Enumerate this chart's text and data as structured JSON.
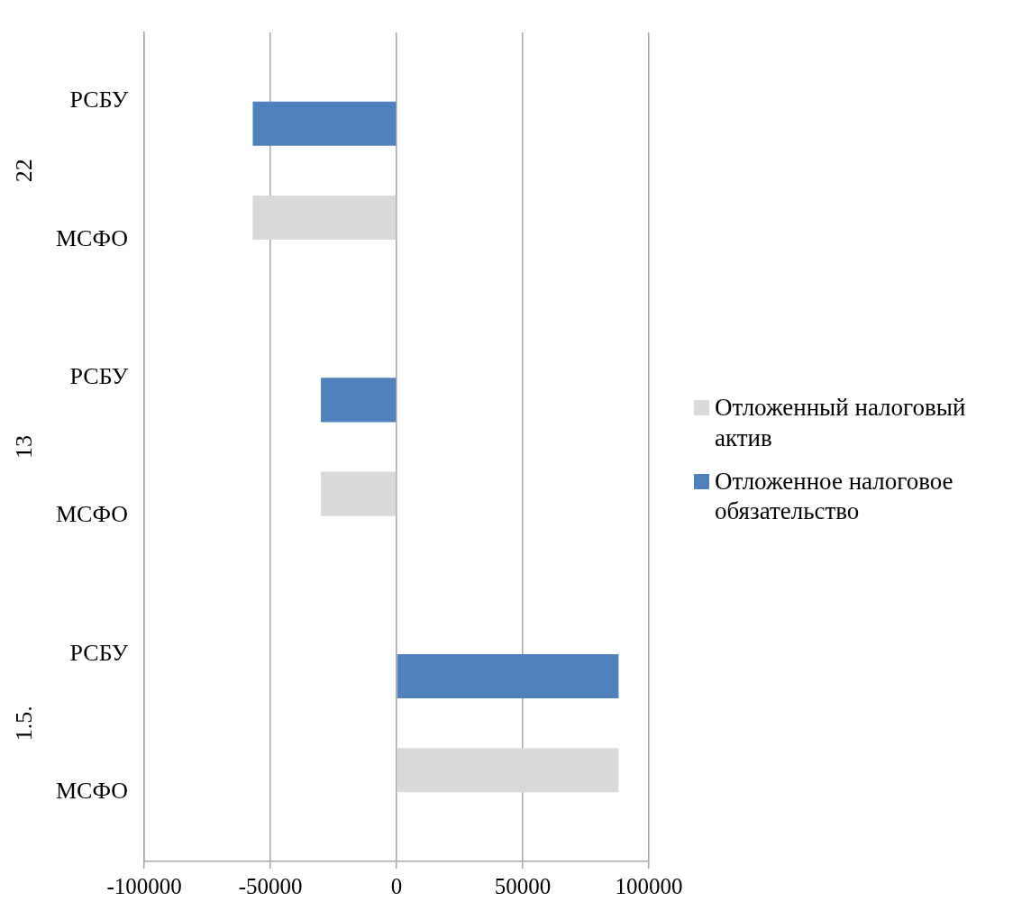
{
  "chart_data": {
    "type": "bar",
    "orientation": "horizontal",
    "categories": [
      "РСБУ",
      "МСФО",
      "РСБУ",
      "МСФО",
      "РСБУ",
      "МСФО"
    ],
    "series": [
      {
        "name": "Отложенный налоговый актив",
        "color": "#d9d9d9",
        "values": [
          0,
          -57000,
          0,
          -30000,
          0,
          88000
        ]
      },
      {
        "name": "Отложенное налоговое обязательство",
        "color": "#4f81bd",
        "values": [
          -57000,
          0,
          -30000,
          0,
          88000,
          0
        ]
      }
    ],
    "xlim": [
      -100000,
      100000
    ],
    "xticks": [
      -100000,
      -50000,
      0,
      50000,
      100000
    ],
    "grid": "x",
    "legend": "right",
    "annotations": [
      "22",
      "13",
      "1.5."
    ]
  }
}
